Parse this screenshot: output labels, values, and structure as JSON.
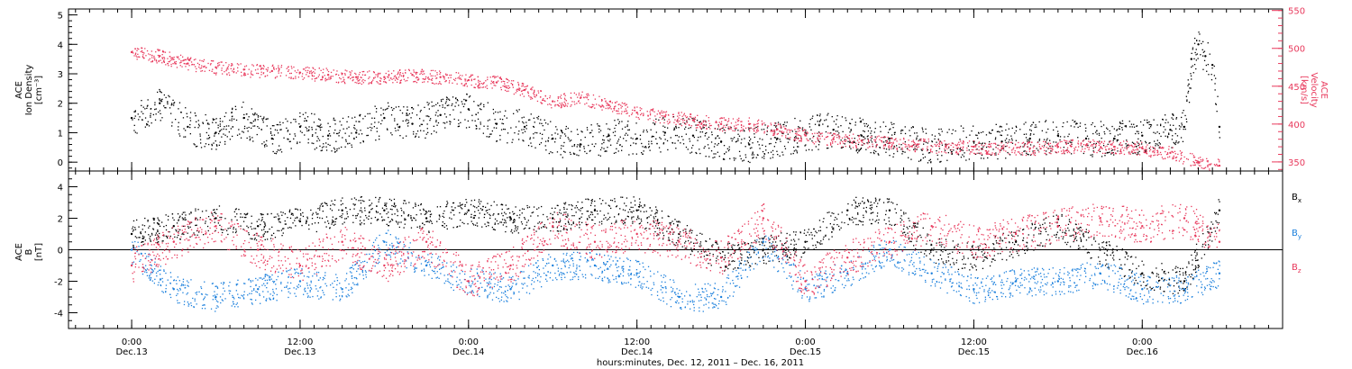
{
  "chart_data": [
    {
      "type": "scatter",
      "panel": "top",
      "left_axis_label": [
        "ACE",
        "Ion Density",
        "[cm⁻³]"
      ],
      "right_axis_label": [
        "ACE",
        "Velocity",
        "[km/s]"
      ],
      "ylim_left": [
        -0.3,
        5.2
      ],
      "yticks_left": [
        "0",
        "1",
        "2",
        "3",
        "4",
        "5"
      ],
      "ylim_right": [
        338,
        552
      ],
      "yticks_right": [
        "350",
        "400",
        "450",
        "500",
        "550"
      ],
      "series": [
        {
          "color": "#000000",
          "axis": "left",
          "x_hours": [
            0,
            2,
            4,
            6,
            8,
            10,
            12,
            14,
            16,
            18,
            20,
            22,
            24,
            26,
            28,
            30,
            32,
            34,
            36,
            38,
            40,
            42,
            44,
            46,
            48,
            50,
            52,
            54,
            56,
            58,
            60,
            62,
            64,
            66,
            68,
            70,
            72,
            74,
            75,
            75.5,
            76,
            76.5,
            77,
            77.5
          ],
          "values": [
            1.5,
            2.0,
            1.2,
            1.0,
            1.5,
            0.8,
            1.2,
            0.9,
            1.0,
            1.5,
            1.3,
            1.6,
            1.8,
            1.3,
            1.2,
            0.8,
            0.6,
            0.9,
            0.8,
            1.0,
            0.9,
            0.7,
            0.6,
            0.8,
            1.0,
            1.1,
            0.9,
            0.8,
            0.6,
            0.6,
            0.7,
            0.7,
            0.8,
            0.9,
            0.8,
            0.8,
            0.9,
            1.1,
            1.2,
            3.5,
            4.0,
            3.6,
            3.3,
            1.2
          ]
        },
        {
          "color": "#e8395c",
          "axis": "right",
          "x_hours": [
            0,
            2,
            4,
            6,
            8,
            10,
            12,
            14,
            16,
            18,
            20,
            22,
            24,
            26,
            28,
            30,
            32,
            34,
            36,
            38,
            40,
            42,
            44,
            46,
            48,
            50,
            52,
            54,
            56,
            58,
            60,
            62,
            64,
            66,
            68,
            70,
            72,
            74,
            76,
            77.5
          ],
          "values": [
            495,
            490,
            480,
            475,
            472,
            470,
            468,
            465,
            462,
            462,
            465,
            462,
            458,
            455,
            445,
            430,
            435,
            425,
            415,
            410,
            405,
            400,
            400,
            393,
            385,
            380,
            378,
            375,
            373,
            370,
            370,
            368,
            368,
            370,
            372,
            370,
            368,
            362,
            350,
            345
          ]
        }
      ]
    },
    {
      "type": "scatter",
      "panel": "bottom",
      "left_axis_label": [
        "ACE",
        "B",
        "[nT]"
      ],
      "ylim": [
        -5,
        5
      ],
      "yticks": [
        "-4",
        "-2",
        "0",
        "2",
        "4"
      ],
      "legend": [
        {
          "label": "B",
          "sub": "x",
          "color": "#000000"
        },
        {
          "label": "B",
          "sub": "y",
          "color": "#1a7fdc"
        },
        {
          "label": "B",
          "sub": "z",
          "color": "#e8395c"
        }
      ],
      "series": [
        {
          "color": "#000000",
          "x_hours": [
            0,
            3,
            6,
            9,
            12,
            15,
            18,
            21,
            24,
            27,
            30,
            33,
            36,
            39,
            42,
            45,
            48,
            51,
            54,
            57,
            60,
            63,
            66,
            69,
            72,
            75,
            77.5
          ],
          "values": [
            1.0,
            1.5,
            2.0,
            1.5,
            1.8,
            2.5,
            2.5,
            2.0,
            2.5,
            2.0,
            2.0,
            2.5,
            2.5,
            1.0,
            -0.5,
            0.0,
            0.5,
            2.5,
            2.5,
            0.0,
            -0.5,
            0.5,
            1.5,
            0.0,
            -1.5,
            -2.0,
            2.5
          ]
        },
        {
          "color": "#1a7fdc",
          "x_hours": [
            0,
            3,
            6,
            9,
            12,
            15,
            18,
            21,
            24,
            27,
            30,
            33,
            36,
            39,
            42,
            45,
            48,
            51,
            54,
            57,
            60,
            63,
            66,
            69,
            72,
            75,
            77.5
          ],
          "values": [
            0.0,
            -2.5,
            -3.0,
            -2.5,
            -2.0,
            -2.5,
            0.5,
            -1.0,
            -2.0,
            -2.5,
            -1.0,
            -1.0,
            -1.5,
            -3.0,
            -3.0,
            0.5,
            -2.5,
            -1.5,
            0.0,
            -1.5,
            -2.5,
            -2.0,
            -2.0,
            -1.5,
            -2.5,
            -2.5,
            -1.5
          ]
        },
        {
          "color": "#e8395c",
          "x_hours": [
            0,
            3,
            6,
            9,
            12,
            15,
            18,
            21,
            24,
            27,
            30,
            33,
            36,
            39,
            42,
            45,
            48,
            51,
            54,
            57,
            60,
            63,
            66,
            69,
            72,
            75,
            77.5
          ],
          "values": [
            -1.0,
            0.5,
            1.5,
            0.0,
            -1.0,
            0.5,
            -1.0,
            0.5,
            -2.0,
            -1.0,
            1.5,
            0.5,
            1.0,
            0.5,
            -0.5,
            2.0,
            -2.0,
            -0.5,
            0.5,
            1.5,
            0.5,
            1.0,
            1.5,
            2.0,
            1.5,
            2.0,
            0.5
          ]
        }
      ]
    }
  ],
  "x_axis": {
    "range_hours": [
      -4.5,
      82
    ],
    "tick_labels": [
      {
        "time": "0:00",
        "date": "Dec.13"
      },
      {
        "time": "12:00",
        "date": "Dec.13"
      },
      {
        "time": "0:00",
        "date": "Dec.14"
      },
      {
        "time": "12:00",
        "date": "Dec.14"
      },
      {
        "time": "0:00",
        "date": "Dec.15"
      },
      {
        "time": "12:00",
        "date": "Dec.15"
      },
      {
        "time": "0:00",
        "date": "Dec.16"
      }
    ],
    "tick_hours": [
      0,
      12,
      24,
      36,
      48,
      60,
      72
    ],
    "title": "hours:minutes, Dec. 12, 2011 – Dec. 16, 2011"
  }
}
